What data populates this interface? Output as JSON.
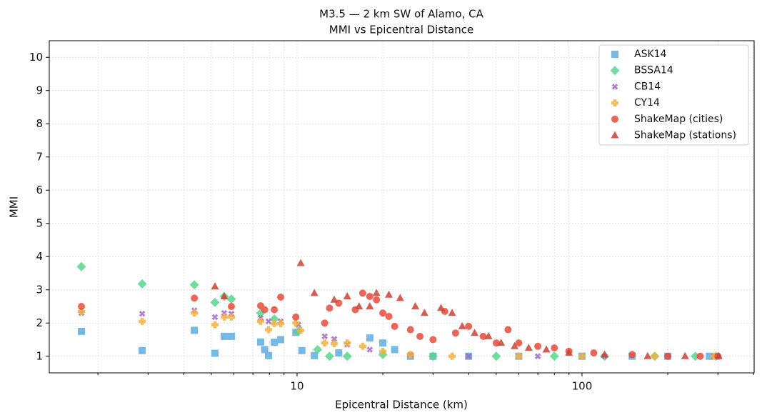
{
  "chart_data": {
    "type": "scatter",
    "title": "M3.5 — 2 km SW of Alamo, CA",
    "subtitle": "MMI vs Epicentral Distance",
    "x_label": "Epicentral Distance (km)",
    "y_label": "MMI",
    "xscale": "log",
    "xlim": [
      1.35,
      402
    ],
    "ylim": [
      0.5,
      10.5
    ],
    "xticks": [
      10,
      100
    ],
    "xminorticks": [
      2,
      3,
      4,
      5,
      6,
      7,
      8,
      9,
      20,
      30,
      40,
      50,
      60,
      70,
      80,
      90,
      200,
      300,
      400
    ],
    "yticks": [
      1,
      2,
      3,
      4,
      5,
      6,
      7,
      8,
      9,
      10
    ],
    "grid": true,
    "legend": "upper right",
    "series": [
      {
        "name": "ASK14",
        "color": "#5dade2",
        "marker": "square",
        "x": [
          1.75,
          2.86,
          4.36,
          5.15,
          5.55,
          5.88,
          7.45,
          7.7,
          7.94,
          8.32,
          8.76,
          9.9,
          10.4,
          11.5,
          14,
          18,
          20,
          22,
          25,
          30,
          40,
          60,
          100,
          150,
          200,
          280
        ],
        "y": [
          1.75,
          1.17,
          1.78,
          1.09,
          1.6,
          1.6,
          1.43,
          1.2,
          1.02,
          1.42,
          1.5,
          1.72,
          1.17,
          1.02,
          1.1,
          1.55,
          1.4,
          1.2,
          1.0,
          1.0,
          1.0,
          1.0,
          1.0,
          1.0,
          1.0,
          1.0
        ]
      },
      {
        "name": "BSSA14",
        "color": "#58d68d",
        "marker": "diamond",
        "x": [
          1.75,
          2.86,
          4.36,
          5.15,
          5.55,
          5.88,
          7.45,
          8.32,
          10.1,
          11.8,
          13,
          15,
          20,
          30,
          50,
          80,
          120,
          180,
          250,
          295
        ],
        "y": [
          3.7,
          3.18,
          3.15,
          2.62,
          2.8,
          2.72,
          2.3,
          2.12,
          1.75,
          1.2,
          1.0,
          1.0,
          1.05,
          1.0,
          1.0,
          1.0,
          1.0,
          1.0,
          1.0,
          1.0
        ]
      },
      {
        "name": "CB14",
        "color": "#a569bd",
        "marker": "x",
        "x": [
          1.75,
          2.86,
          4.36,
          5.15,
          5.55,
          5.88,
          7.45,
          7.94,
          8.76,
          10.1,
          12.5,
          13.5,
          15,
          18,
          25,
          40,
          70,
          120,
          200,
          290
        ],
        "y": [
          2.3,
          2.28,
          2.38,
          2.18,
          2.3,
          2.28,
          2.15,
          2.05,
          2.05,
          1.95,
          1.6,
          1.52,
          1.35,
          1.2,
          1.05,
          1.0,
          1.0,
          1.0,
          1.0,
          1.0
        ]
      },
      {
        "name": "CY14",
        "color": "#f5b041",
        "marker": "plus",
        "x": [
          1.75,
          2.86,
          4.36,
          5.15,
          5.55,
          5.88,
          7.45,
          7.94,
          8.32,
          8.76,
          9.9,
          10.3,
          12.5,
          13.5,
          15,
          17,
          20,
          25,
          35,
          60,
          100,
          180,
          290
        ],
        "y": [
          2.35,
          2.05,
          2.3,
          1.95,
          2.18,
          2.18,
          2.05,
          1.8,
          1.98,
          1.98,
          2.0,
          1.78,
          1.4,
          1.38,
          1.4,
          1.3,
          1.15,
          1.05,
          1.0,
          1.0,
          1.0,
          1.0,
          1.0
        ]
      },
      {
        "name": "ShakeMap (cities)",
        "color": "#e74c3c",
        "marker": "circle",
        "x": [
          1.75,
          4.36,
          5.88,
          7.45,
          7.7,
          8.32,
          8.76,
          9.9,
          12.5,
          13,
          14,
          16,
          17,
          18,
          19,
          20,
          21,
          22,
          25,
          27,
          30,
          33,
          36,
          40,
          45,
          50,
          55,
          60,
          70,
          80,
          90,
          110,
          150,
          200,
          260,
          300
        ],
        "y": [
          2.5,
          2.75,
          2.5,
          2.52,
          2.4,
          2.4,
          2.78,
          2.18,
          2.0,
          2.45,
          2.6,
          2.4,
          2.9,
          2.8,
          2.7,
          2.3,
          2.2,
          1.9,
          1.8,
          1.6,
          1.5,
          2.35,
          1.7,
          1.9,
          1.6,
          1.4,
          1.8,
          1.4,
          1.3,
          1.25,
          1.15,
          1.1,
          1.05,
          1.0,
          1.0,
          1.0
        ]
      },
      {
        "name": "ShakeMap (stations)",
        "color": "#cb4335",
        "marker": "triangle",
        "x": [
          5.15,
          5.55,
          10.3,
          11.5,
          13.5,
          15,
          16.5,
          18,
          19,
          21,
          23,
          26,
          28,
          32,
          35,
          38,
          42,
          47,
          52,
          58,
          65,
          75,
          90,
          120,
          170,
          230,
          302
        ],
        "y": [
          3.1,
          2.8,
          3.8,
          2.9,
          2.7,
          2.8,
          2.5,
          2.5,
          2.9,
          2.85,
          2.75,
          2.5,
          2.3,
          2.45,
          2.3,
          1.9,
          1.7,
          1.6,
          1.4,
          1.3,
          1.25,
          1.2,
          1.1,
          1.05,
          1.0,
          1.0,
          1.0
        ]
      }
    ]
  }
}
